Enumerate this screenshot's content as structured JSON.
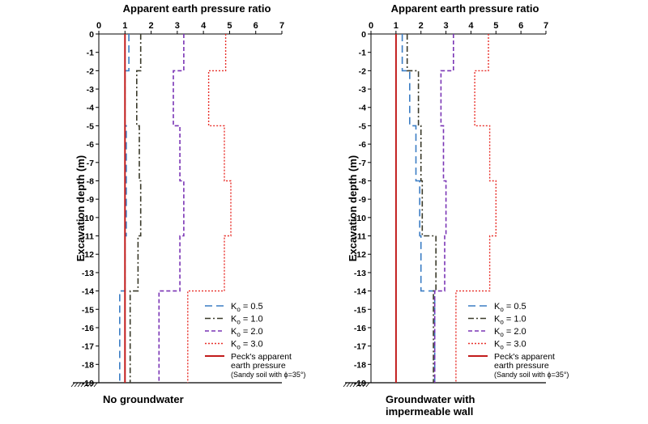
{
  "chart_data": [
    {
      "type": "line",
      "title": "Apparent earth pressure ratio",
      "ylabel": "Excavation depth (m)",
      "caption": "No groundwater",
      "xlim": [
        0,
        7
      ],
      "ylim": [
        -19,
        0
      ],
      "x_ticks": [
        "0",
        "1",
        "2",
        "3",
        "4",
        "5",
        "6",
        "7"
      ],
      "y_ticks": [
        "0",
        "-1",
        "-2",
        "-3",
        "-4",
        "-5",
        "-6",
        "-7",
        "-8",
        "-9",
        "-10",
        "-11",
        "-12",
        "-13",
        "-14",
        "-15",
        "-16",
        "-17",
        "-18",
        "-19"
      ],
      "series": [
        {
          "name": "Ko = 0.5",
          "legend_label": "K",
          "legend_sub": "o",
          "legend_value": " = 0.5",
          "style": "dash",
          "color": "#3b7dc4",
          "points": [
            [
              1.15,
              0
            ],
            [
              1.15,
              -2
            ],
            [
              1.0,
              -2
            ],
            [
              1.0,
              -5
            ],
            [
              1.05,
              -5
            ],
            [
              1.05,
              -8
            ],
            [
              1.05,
              -8
            ],
            [
              1.05,
              -11
            ],
            [
              1.0,
              -11
            ],
            [
              1.0,
              -14
            ],
            [
              0.8,
              -14
            ],
            [
              0.8,
              -19
            ]
          ]
        },
        {
          "name": "Ko = 1.0",
          "legend_label": "K",
          "legend_sub": "o",
          "legend_value": " = 1.0",
          "style": "dashdot",
          "color": "#3a3a2a",
          "points": [
            [
              1.6,
              0
            ],
            [
              1.6,
              -2
            ],
            [
              1.45,
              -2
            ],
            [
              1.45,
              -5
            ],
            [
              1.55,
              -5
            ],
            [
              1.55,
              -8
            ],
            [
              1.6,
              -8
            ],
            [
              1.6,
              -11
            ],
            [
              1.5,
              -11
            ],
            [
              1.5,
              -14
            ],
            [
              1.2,
              -14
            ],
            [
              1.2,
              -19
            ]
          ]
        },
        {
          "name": "Ko = 2.0",
          "legend_label": "K",
          "legend_sub": "o",
          "legend_value": " = 2.0",
          "style": "shortdash",
          "color": "#7a35b5",
          "points": [
            [
              3.25,
              0
            ],
            [
              3.25,
              -2
            ],
            [
              2.85,
              -2
            ],
            [
              2.85,
              -5
            ],
            [
              3.1,
              -5
            ],
            [
              3.1,
              -8
            ],
            [
              3.25,
              -8
            ],
            [
              3.25,
              -11
            ],
            [
              3.1,
              -11
            ],
            [
              3.1,
              -14
            ],
            [
              2.3,
              -14
            ],
            [
              2.3,
              -19
            ]
          ]
        },
        {
          "name": "Ko = 3.0",
          "legend_label": "K",
          "legend_sub": "o",
          "legend_value": " = 3.0",
          "style": "dot",
          "color": "#e8302a",
          "points": [
            [
              4.85,
              0
            ],
            [
              4.85,
              -2
            ],
            [
              4.2,
              -2
            ],
            [
              4.2,
              -5
            ],
            [
              4.8,
              -5
            ],
            [
              4.8,
              -8
            ],
            [
              5.05,
              -8
            ],
            [
              5.05,
              -11
            ],
            [
              4.8,
              -11
            ],
            [
              4.8,
              -14
            ],
            [
              3.4,
              -14
            ],
            [
              3.4,
              -19
            ]
          ]
        },
        {
          "name": "Peck's apparent earth pressure",
          "legend_lines": [
            "Peck's apparent",
            "earth pressure",
            "(Sandy soil with ϕ=35°)"
          ],
          "style": "solid",
          "color": "#c21c1c",
          "points": [
            [
              1.0,
              0
            ],
            [
              1.0,
              -19
            ]
          ]
        }
      ]
    },
    {
      "type": "line",
      "title": "Apparent earth pressure ratio",
      "ylabel": "Excavation depth (m)",
      "caption": "Groundwater with impermeable wall",
      "caption_lines": [
        "Groundwater with",
        "impermeable wall"
      ],
      "xlim": [
        0,
        7
      ],
      "ylim": [
        -19,
        0
      ],
      "x_ticks": [
        "0",
        "1",
        "2",
        "3",
        "4",
        "5",
        "6",
        "7"
      ],
      "y_ticks": [
        "0",
        "-1",
        "-2",
        "-3",
        "-4",
        "-5",
        "-6",
        "-7",
        "-8",
        "-9",
        "-10",
        "-11",
        "-12",
        "-13",
        "-14",
        "-15",
        "-16",
        "-17",
        "-18",
        "-19"
      ],
      "series": [
        {
          "name": "Ko = 0.5",
          "legend_label": "K",
          "legend_sub": "o",
          "legend_value": " = 0.5",
          "style": "dash",
          "color": "#3b7dc4",
          "points": [
            [
              1.25,
              0
            ],
            [
              1.25,
              -2
            ],
            [
              1.55,
              -2
            ],
            [
              1.55,
              -5
            ],
            [
              1.8,
              -5
            ],
            [
              1.8,
              -8
            ],
            [
              1.95,
              -8
            ],
            [
              1.95,
              -11
            ],
            [
              2.0,
              -11
            ],
            [
              2.0,
              -14
            ],
            [
              2.55,
              -14
            ],
            [
              2.55,
              -19
            ]
          ]
        },
        {
          "name": "Ko = 1.0",
          "legend_label": "K",
          "legend_sub": "o",
          "legend_value": " = 1.0",
          "style": "dashdot",
          "color": "#3a3a2a",
          "points": [
            [
              1.45,
              0
            ],
            [
              1.45,
              -2
            ],
            [
              1.9,
              -2
            ],
            [
              1.9,
              -5
            ],
            [
              2.0,
              -5
            ],
            [
              2.0,
              -8
            ],
            [
              2.05,
              -8
            ],
            [
              2.05,
              -11
            ],
            [
              2.6,
              -11
            ],
            [
              2.6,
              -14
            ],
            [
              2.5,
              -14
            ],
            [
              2.5,
              -19
            ]
          ]
        },
        {
          "name": "Ko = 2.0",
          "legend_label": "K",
          "legend_sub": "o",
          "legend_value": " = 2.0",
          "style": "shortdash",
          "color": "#7a35b5",
          "points": [
            [
              3.3,
              0
            ],
            [
              3.3,
              -2
            ],
            [
              2.8,
              -2
            ],
            [
              2.8,
              -5
            ],
            [
              2.9,
              -5
            ],
            [
              2.9,
              -8
            ],
            [
              3.0,
              -8
            ],
            [
              3.0,
              -11
            ],
            [
              2.95,
              -11
            ],
            [
              2.95,
              -14
            ],
            [
              2.55,
              -14
            ],
            [
              2.55,
              -19
            ]
          ]
        },
        {
          "name": "Ko = 3.0",
          "legend_label": "K",
          "legend_sub": "o",
          "legend_value": " = 3.0",
          "style": "dot",
          "color": "#e8302a",
          "points": [
            [
              4.7,
              0
            ],
            [
              4.7,
              -2
            ],
            [
              4.15,
              -2
            ],
            [
              4.15,
              -5
            ],
            [
              4.75,
              -5
            ],
            [
              4.75,
              -8
            ],
            [
              5.0,
              -8
            ],
            [
              5.0,
              -11
            ],
            [
              4.75,
              -11
            ],
            [
              4.75,
              -14
            ],
            [
              3.4,
              -14
            ],
            [
              3.4,
              -19
            ]
          ]
        },
        {
          "name": "Peck's apparent earth pressure",
          "legend_lines": [
            "Peck's apparent",
            "earth pressure",
            "(Sandy soil with ϕ=35°)"
          ],
          "style": "solid",
          "color": "#c21c1c",
          "points": [
            [
              1.0,
              0
            ],
            [
              1.0,
              -19
            ]
          ]
        }
      ]
    }
  ]
}
